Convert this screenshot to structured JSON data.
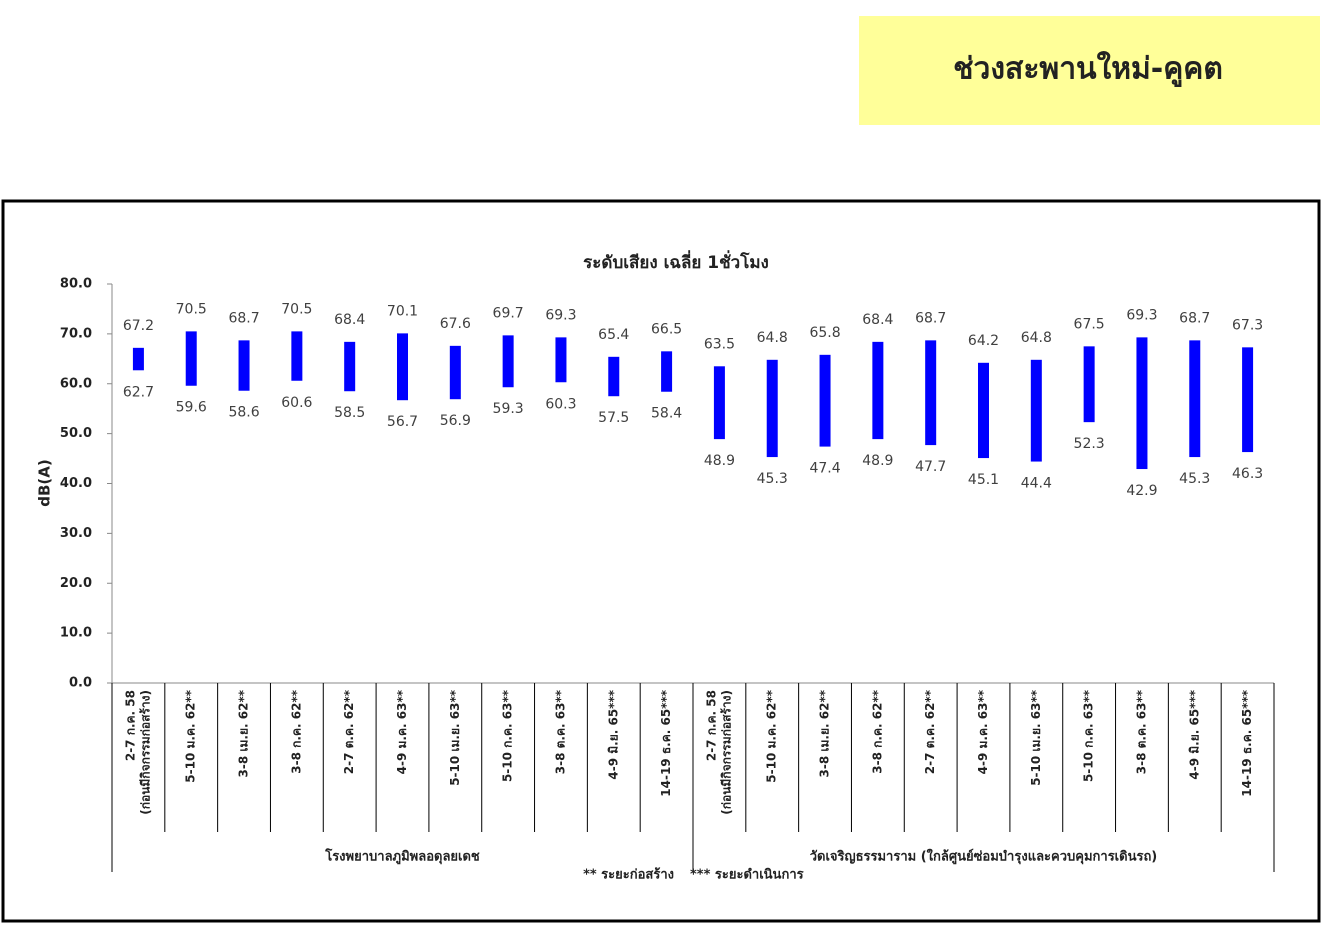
{
  "header": {
    "title": "ช่วงสะพานใหม่-คูคต"
  },
  "chart_data": {
    "type": "range",
    "title": "ระดับเสียง เฉลี่ย 1ชั่วโมง",
    "y_label": "dB(A)",
    "color": "#0000ff",
    "ylim": [
      0,
      80
    ],
    "yticks": [
      {
        "value": 0,
        "label": "0.0"
      },
      {
        "value": 10,
        "label": "10.0"
      },
      {
        "value": 20,
        "label": "20.0"
      },
      {
        "value": 30,
        "label": "30.0"
      },
      {
        "value": 40,
        "label": "40.0"
      },
      {
        "value": 50,
        "label": "50.0"
      },
      {
        "value": 60,
        "label": "60.0"
      },
      {
        "value": 70,
        "label": "70.0"
      },
      {
        "value": 80,
        "label": "80.0"
      }
    ],
    "groups": [
      {
        "name": "โรงพยาบาลภูมิพลอดุลยเดช",
        "categories": [
          [
            "2-7 ก.ค. 58",
            "(ก่อนมีกิจกรรมก่อสร้าง)"
          ],
          [
            "5-10 ม.ค. 62**"
          ],
          [
            "3-8 เม.ย. 62**"
          ],
          [
            "3-8 ก.ค. 62**"
          ],
          [
            "2-7 ต.ค. 62**"
          ],
          [
            "4-9 ม.ค. 63**"
          ],
          [
            "5-10 เม.ย. 63**"
          ],
          [
            "5-10 ก.ค. 63**"
          ],
          [
            "3-8 ต.ค. 63**"
          ],
          [
            "4-9 มิ.ย. 65***"
          ],
          [
            "14-19 ธ.ค. 65***"
          ]
        ],
        "high": [
          67.2,
          70.5,
          68.7,
          70.5,
          68.4,
          70.1,
          67.6,
          69.7,
          69.3,
          65.4,
          66.5
        ],
        "low": [
          62.7,
          59.6,
          58.6,
          60.6,
          58.5,
          56.7,
          56.9,
          59.3,
          60.3,
          57.5,
          58.4
        ]
      },
      {
        "name": "วัดเจริญธรรมาราม (ใกล้ศูนย์ซ่อมบำรุงและควบคุมการเดินรถ)",
        "categories": [
          [
            "2-7 ก.ค. 58",
            "(ก่อนมีกิจกรรมก่อสร้าง)"
          ],
          [
            "5-10 ม.ค. 62**"
          ],
          [
            "3-8 เม.ย. 62**"
          ],
          [
            "3-8 ก.ค. 62**"
          ],
          [
            "2-7 ต.ค. 62**"
          ],
          [
            "4-9 ม.ค. 63**"
          ],
          [
            "5-10 เม.ย. 63**"
          ],
          [
            "5-10 ก.ค. 63**"
          ],
          [
            "3-8 ต.ค. 63**"
          ],
          [
            "4-9 มิ.ย. 65***"
          ],
          [
            "14-19 ธ.ค. 65***"
          ]
        ],
        "high": [
          63.5,
          64.8,
          65.8,
          68.4,
          68.7,
          64.2,
          64.8,
          67.5,
          69.3,
          68.7,
          67.3
        ],
        "low": [
          48.9,
          45.3,
          47.4,
          48.9,
          47.7,
          45.1,
          44.4,
          52.3,
          42.9,
          45.3,
          46.3
        ]
      }
    ],
    "notes": [
      "** ระยะก่อสร้าง",
      "*** ระยะดำเนินการ"
    ]
  }
}
